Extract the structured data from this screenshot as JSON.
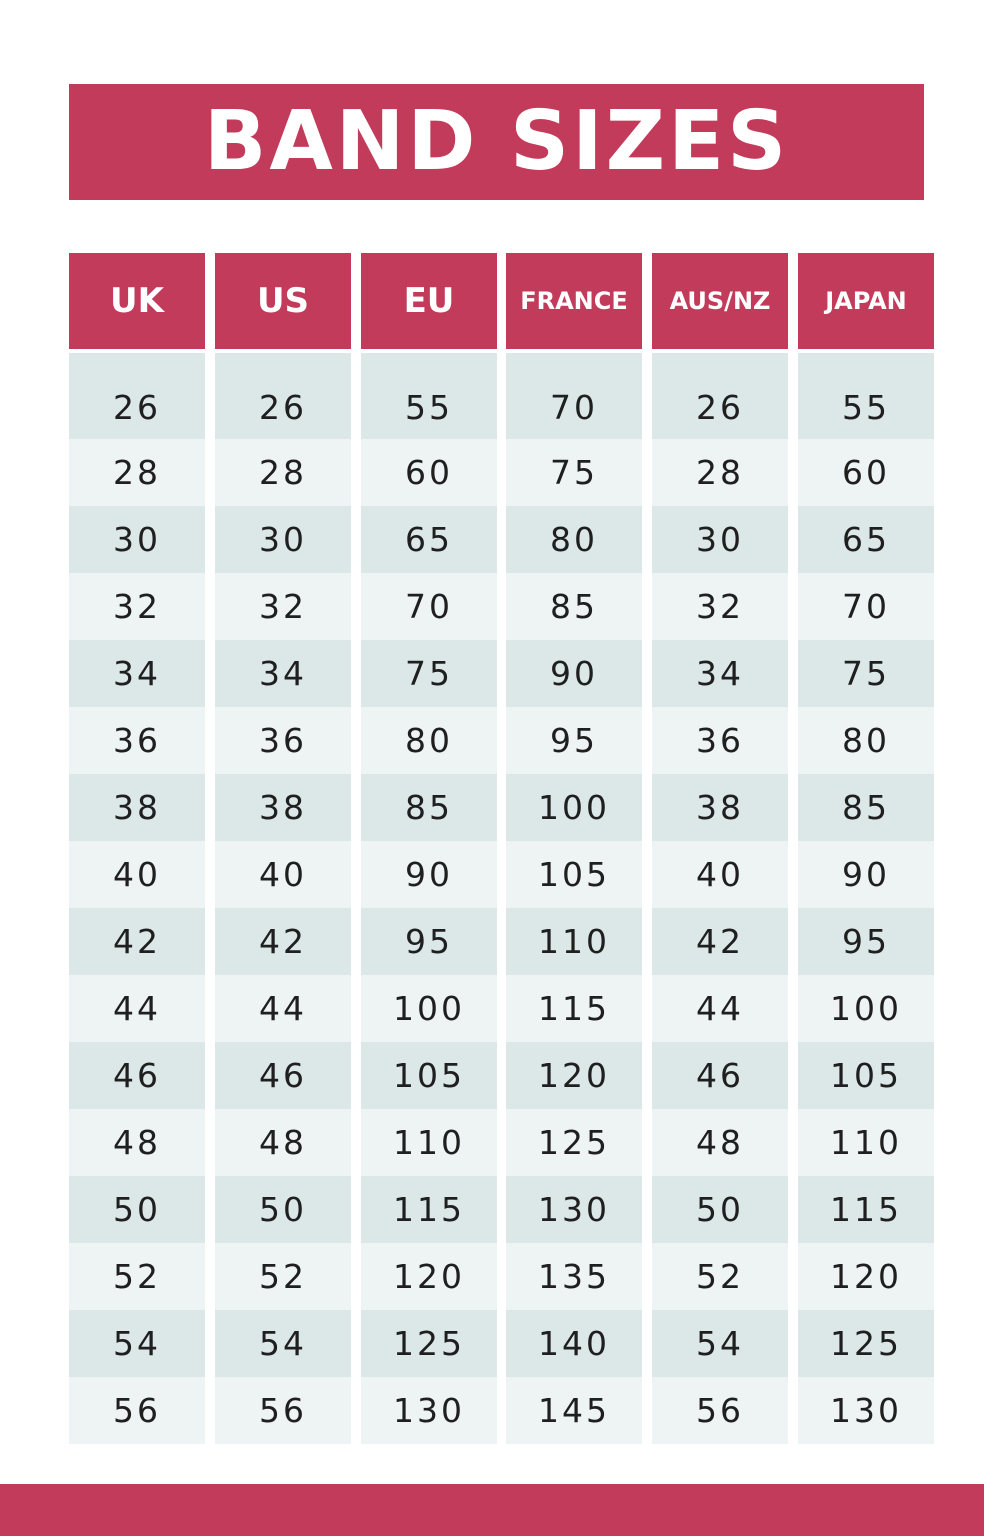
{
  "title": "BAND SIZES",
  "colors": {
    "accent": "#c23b5a",
    "row_dark": "#dbe8e7",
    "row_light": "#eef4f3",
    "text": "#1f1f1f"
  },
  "columns": [
    {
      "header": "UK",
      "values": [
        "26",
        "28",
        "30",
        "32",
        "34",
        "36",
        "38",
        "40",
        "42",
        "44",
        "46",
        "48",
        "50",
        "52",
        "54",
        "56"
      ]
    },
    {
      "header": "US",
      "values": [
        "26",
        "28",
        "30",
        "32",
        "34",
        "36",
        "38",
        "40",
        "42",
        "44",
        "46",
        "48",
        "50",
        "52",
        "54",
        "56"
      ]
    },
    {
      "header": "EU",
      "values": [
        "55",
        "60",
        "65",
        "70",
        "75",
        "80",
        "85",
        "90",
        "95",
        "100",
        "105",
        "110",
        "115",
        "120",
        "125",
        "130"
      ]
    },
    {
      "header": "FRANCE",
      "values": [
        "70",
        "75",
        "80",
        "85",
        "90",
        "95",
        "100",
        "105",
        "110",
        "115",
        "120",
        "125",
        "130",
        "135",
        "140",
        "145"
      ]
    },
    {
      "header": "AUS/NZ",
      "values": [
        "26",
        "28",
        "30",
        "32",
        "34",
        "36",
        "38",
        "40",
        "42",
        "44",
        "46",
        "48",
        "50",
        "52",
        "54",
        "56"
      ]
    },
    {
      "header": "JAPAN",
      "values": [
        "55",
        "60",
        "65",
        "70",
        "75",
        "80",
        "85",
        "90",
        "95",
        "100",
        "105",
        "110",
        "115",
        "120",
        "125",
        "130"
      ]
    }
  ]
}
